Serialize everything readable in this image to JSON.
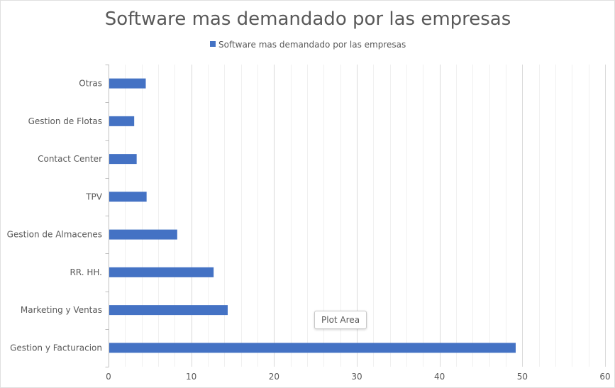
{
  "colors": {
    "bar": "#4472c4",
    "text": "#595959",
    "major_grid": "#d9d9d9",
    "minor_grid": "#f0f0f0",
    "axis": "#bfbfbf",
    "chart_border": "#e0e0e0"
  },
  "tooltip": {
    "label": "Plot Area"
  },
  "chart_data": {
    "type": "bar",
    "orientation": "horizontal",
    "title": "Software mas demandado por las empresas",
    "xlabel": "",
    "ylabel": "",
    "categories": [
      "Gestion y Facturacion",
      "Marketing y Ventas",
      "RR. HH.",
      "Gestion de Almacenes",
      "TPV",
      "Contact Center",
      "Gestion de Flotas",
      "Otras"
    ],
    "series": [
      {
        "name": "Software mas demandado por las empresas",
        "values": [
          49.2,
          14.4,
          12.7,
          8.3,
          4.6,
          3.4,
          3.1,
          4.5
        ]
      }
    ],
    "xlim": [
      0,
      60
    ],
    "x_ticks": [
      0,
      10,
      20,
      30,
      40,
      50,
      60
    ],
    "minor_tick_step": 2,
    "grid": true,
    "legend": "top"
  }
}
